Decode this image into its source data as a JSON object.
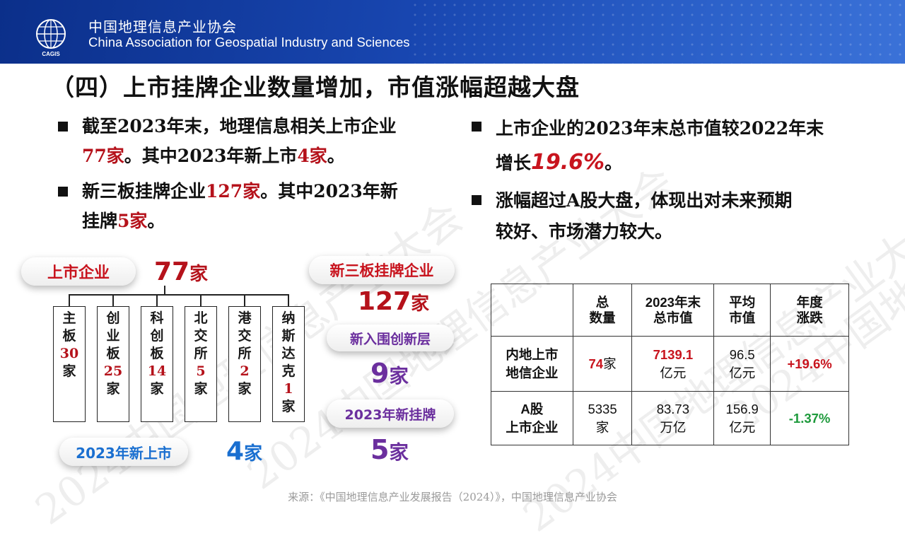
{
  "header": {
    "org_cn": "中国地理信息产业协会",
    "org_en": "China Association for Geospatial Industry and Sciences",
    "logo_text": "CAGIS"
  },
  "title": "（四）上市挂牌企业数量增加，市值涨幅超越大盘",
  "bullets_left": [
    {
      "line1_a": "截至2023年末，地理信息相关上市企业",
      "line2_red": "77家",
      "line2_b": "。其中2023年新上市",
      "line2_red2": "4家",
      "line2_c": "。"
    },
    {
      "line1_a": "新三板挂牌企业",
      "line1_red": "127家",
      "line1_b": "。其中2023年新",
      "line2_a": "挂牌",
      "line2_red": "5家",
      "line2_b": "。"
    }
  ],
  "bullets_right": [
    {
      "line1": "上市企业的2023年末总市值较2022年末",
      "line2_a": "增长",
      "line2_red": "19.6%",
      "line2_b": "。"
    },
    {
      "line1": "涨幅超过A股大盘，体现出对未来预期",
      "line2": "较好、市场潜力较大。"
    }
  ],
  "diagram": {
    "listed_label": "上市企业",
    "listed_num": "77",
    "listed_unit": "家",
    "boards": [
      {
        "name": [
          "主",
          "板"
        ],
        "count": "30",
        "unit": "家"
      },
      {
        "name": [
          "创",
          "业",
          "板"
        ],
        "count": "25",
        "unit": "家"
      },
      {
        "name": [
          "科",
          "创",
          "板"
        ],
        "count": "14",
        "unit": "家"
      },
      {
        "name": [
          "北",
          "交",
          "所"
        ],
        "count": "5",
        "unit": "家"
      },
      {
        "name": [
          "港",
          "交",
          "所"
        ],
        "count": "2",
        "unit": "家"
      },
      {
        "name": [
          "纳",
          "斯",
          "达",
          "克"
        ],
        "count": "1",
        "unit": "家"
      }
    ],
    "new_listed_label": "2023年新上市",
    "new_listed_num": "4",
    "new_listed_unit": "家",
    "neeq_label": "新三板挂牌企业",
    "neeq_num": "127",
    "neeq_unit": "家",
    "innovation_label": "新入围创新层",
    "innovation_num": "9",
    "innovation_unit": "家",
    "new_neeq_label": "2023年新挂牌",
    "new_neeq_num": "5",
    "new_neeq_unit": "家"
  },
  "table": {
    "headers": [
      [
        "",
        ""
      ],
      [
        "总",
        "数量"
      ],
      [
        "2023年末",
        "总市值"
      ],
      [
        "平均",
        "市值"
      ],
      [
        "年度",
        "涨跌"
      ]
    ],
    "rows": [
      {
        "label": [
          "内地上市",
          "地信企业"
        ],
        "count": "74",
        "count_unit": "家",
        "total": "7139.1",
        "total_unit": "亿元",
        "avg": "96.5",
        "avg_unit": "亿元",
        "change": "+19.6%"
      },
      {
        "label": [
          "A股",
          "上市企业"
        ],
        "count": "5335",
        "count_unit": "家",
        "total": "83.73",
        "total_unit": "万亿",
        "avg": "156.9",
        "avg_unit": "亿元",
        "change": "-1.37%"
      }
    ]
  },
  "watermark": "2024中国地理信息产业大会",
  "source": "来源：《中国地理信息产业发展报告（2024）》，中国地理信息产业协会",
  "colors": {
    "header_blue": "#1846b0",
    "red": "#b5121b",
    "blue_num": "#1a6fd0",
    "purple": "#6b2f9e",
    "green": "#1e9a3c"
  }
}
